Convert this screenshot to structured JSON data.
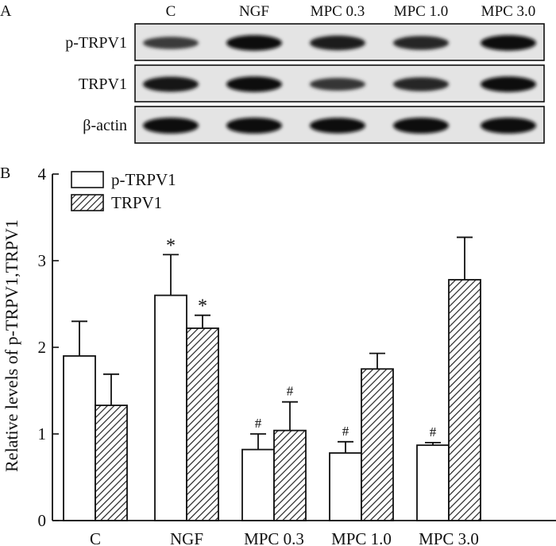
{
  "panels": {
    "a_label": "A",
    "b_label": "B"
  },
  "blot": {
    "lanes": [
      "C",
      "NGF",
      "MPC 0.3",
      "MPC 1.0",
      "MPC 3.0"
    ],
    "rows": [
      {
        "label": "p-TRPV1",
        "intensity": [
          0.55,
          0.95,
          0.85,
          0.75,
          0.95
        ]
      },
      {
        "label": "TRPV1",
        "intensity": [
          0.9,
          0.95,
          0.6,
          0.75,
          0.95
        ]
      },
      {
        "label": "β-actin",
        "intensity": [
          1.0,
          1.0,
          0.95,
          1.0,
          1.0
        ]
      }
    ]
  },
  "chart_data": {
    "type": "bar",
    "categories": [
      "C",
      "NGF",
      "MPC 0.3",
      "MPC 1.0",
      "MPC 3.0"
    ],
    "series": [
      {
        "name": "p-TRPV1",
        "pattern": "open",
        "values": [
          1.9,
          2.6,
          0.82,
          0.78,
          0.87
        ],
        "errors": [
          0.4,
          0.47,
          0.18,
          0.13,
          0.03
        ],
        "annotations": [
          "",
          "*",
          "#",
          "#",
          "#"
        ]
      },
      {
        "name": "TRPV1",
        "pattern": "hatched",
        "values": [
          1.33,
          2.22,
          1.04,
          1.75,
          2.78
        ],
        "errors": [
          0.36,
          0.15,
          0.33,
          0.18,
          0.49
        ],
        "annotations": [
          "",
          "*",
          "#",
          "",
          ""
        ]
      }
    ],
    "ylabel": "Relative levels of p-TRPV1,TRPV1",
    "xlabel": "",
    "ylim": [
      0,
      4
    ],
    "yticks": [
      "0",
      "1",
      "2",
      "3",
      "4"
    ],
    "legend": "top-left",
    "colors": {
      "bar_stroke": "#111111",
      "fill_open": "#ffffff",
      "hatch": "#222222"
    }
  }
}
